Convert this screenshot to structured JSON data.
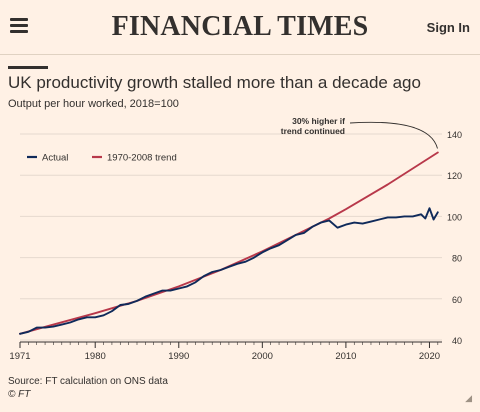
{
  "header": {
    "menu_icon": "hamburger-menu-icon",
    "logo": "FINANCIAL TIMES",
    "signin_label": "Sign In"
  },
  "chart": {
    "title": "UK productivity growth stalled more than a decade ago",
    "subtitle": "Output per hour worked, 2018=100",
    "source": "Source: FT calculation on ONS data",
    "copyright": "© FT",
    "annotation": "30% higher if trend continued"
  },
  "colors": {
    "background": "#fff1e5",
    "actual": "#0f2a5a",
    "trend": "#b8384a",
    "grid": "#e6d9ce",
    "text": "#33302e"
  },
  "chart_data": {
    "type": "line",
    "title": "UK productivity growth stalled more than a decade ago",
    "subtitle": "Output per hour worked, 2018=100",
    "xlabel": "",
    "ylabel": "",
    "xlim": [
      1971,
      2021.5
    ],
    "ylim": [
      40,
      140
    ],
    "x_ticks": [
      1971,
      1980,
      1990,
      2000,
      2010,
      2020
    ],
    "y_ticks": [
      40,
      60,
      80,
      100,
      120,
      140
    ],
    "grid": true,
    "legend_position": "top-left",
    "annotations": [
      {
        "text": "30% higher if trend continued",
        "x": 2021.2,
        "y": 131
      }
    ],
    "series": [
      {
        "name": "Actual",
        "color": "#0f2a5a",
        "x": [
          1971,
          1972,
          1973,
          1974,
          1975,
          1976,
          1977,
          1978,
          1979,
          1980,
          1981,
          1982,
          1983,
          1984,
          1985,
          1986,
          1987,
          1988,
          1989,
          1990,
          1991,
          1992,
          1993,
          1994,
          1995,
          1996,
          1997,
          1998,
          1999,
          2000,
          2001,
          2002,
          2003,
          2004,
          2005,
          2006,
          2007,
          2008,
          2009,
          2010,
          2011,
          2012,
          2013,
          2014,
          2015,
          2016,
          2017,
          2018,
          2019,
          2019.5,
          2020,
          2020.5,
          2021
        ],
        "values": [
          43,
          44,
          46,
          46,
          46.5,
          47.5,
          48.5,
          50,
          51,
          51,
          52,
          54,
          57,
          57.5,
          59,
          61,
          62.5,
          64,
          64,
          65,
          66,
          68,
          71,
          73,
          74,
          75.5,
          77,
          78,
          80,
          82.5,
          84.5,
          86,
          88.5,
          91,
          92,
          95,
          97,
          98,
          94.5,
          96,
          97,
          96.5,
          97.5,
          98.5,
          99.5,
          99.5,
          100,
          100,
          101,
          99,
          104,
          98.5,
          102
        ]
      },
      {
        "name": "1970-2008 trend",
        "color": "#b8384a",
        "x": [
          1971,
          1975,
          1980,
          1985,
          1990,
          1995,
          2000,
          2005,
          2008,
          2010,
          2015,
          2021
        ],
        "values": [
          43,
          47.5,
          53,
          59,
          66,
          74,
          83,
          93,
          99,
          103.5,
          115.5,
          131
        ]
      }
    ]
  }
}
